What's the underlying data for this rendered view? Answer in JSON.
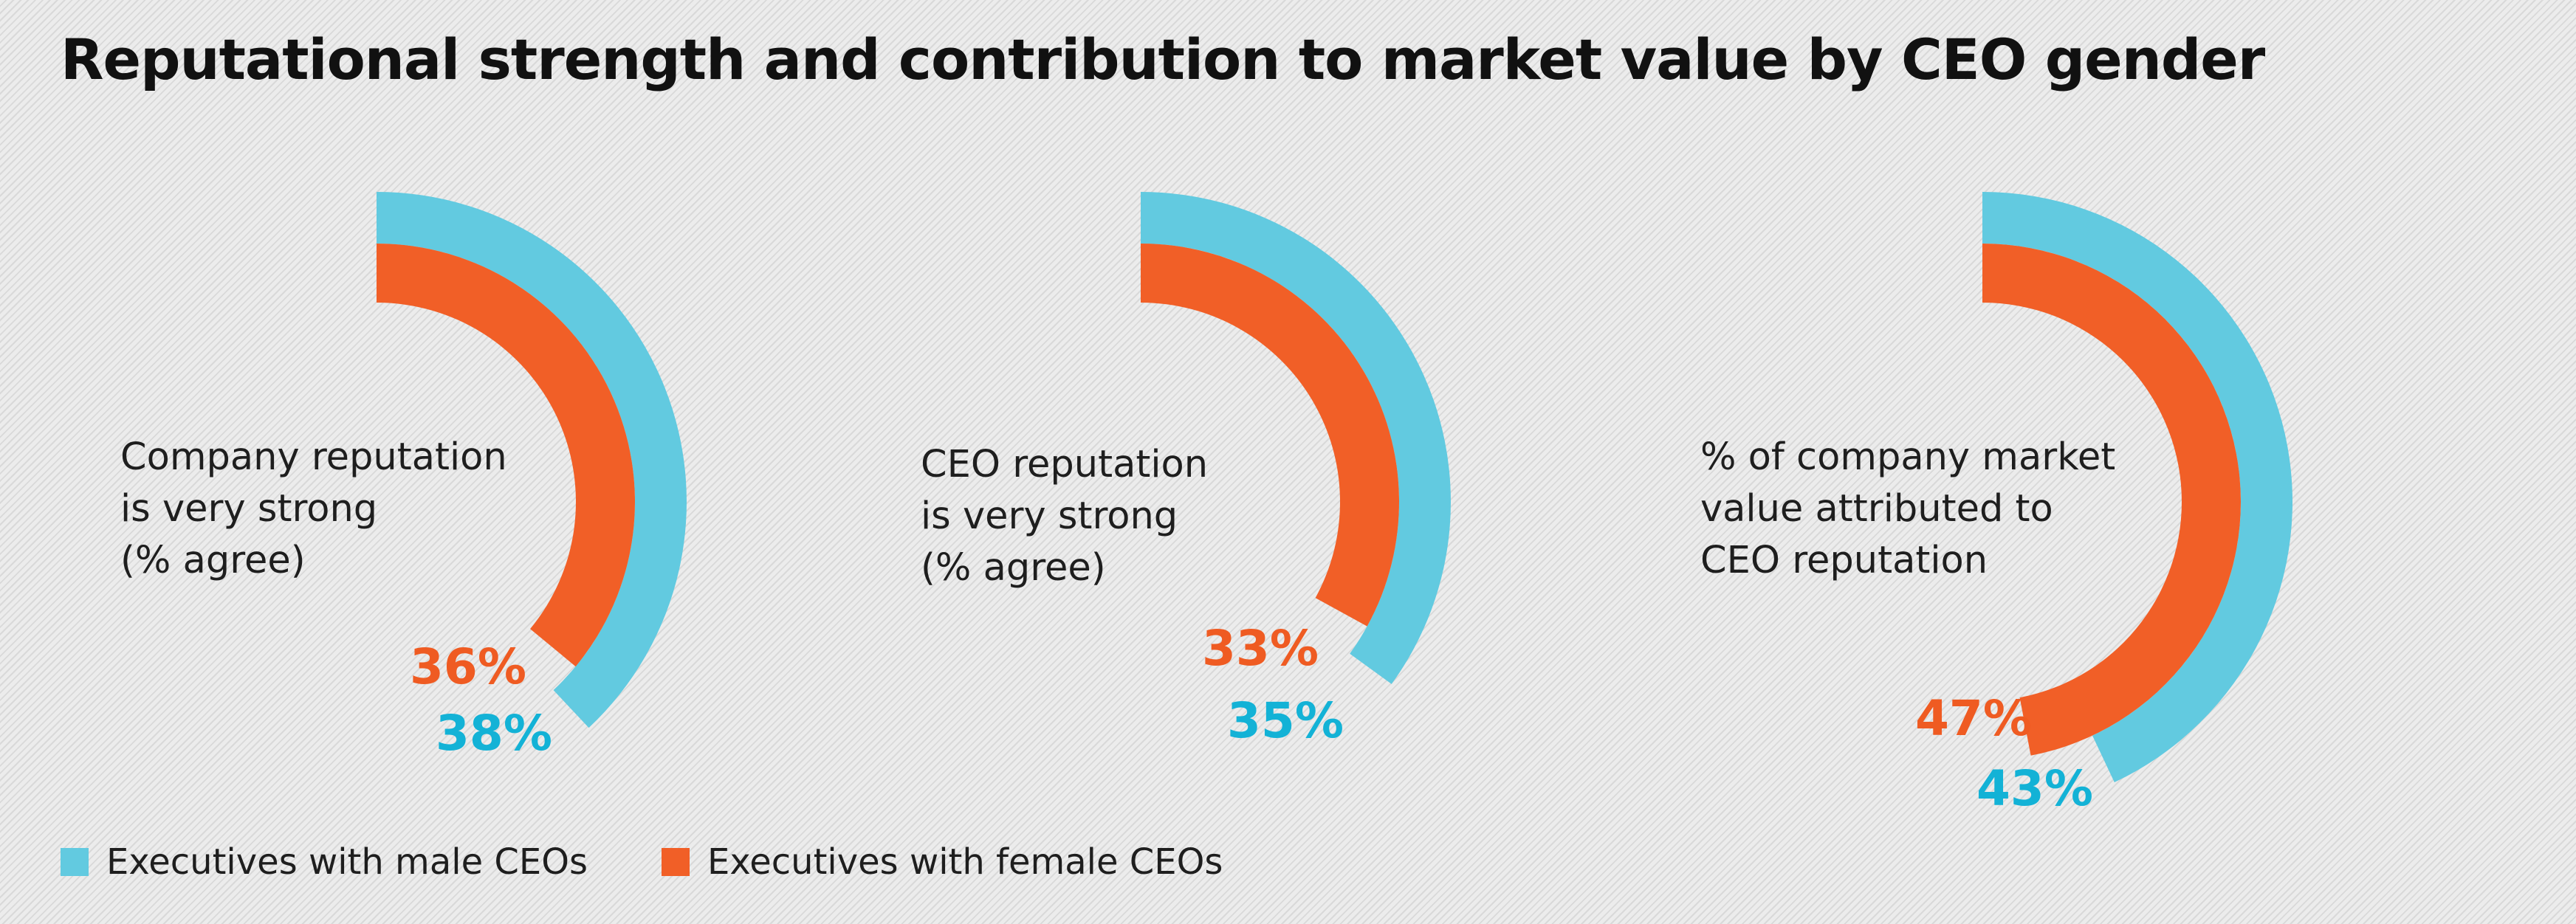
{
  "colors": {
    "male": "#62cae0",
    "female": "#f15f27",
    "male_text": "#13b2d6",
    "female_text": "#ef5b22"
  },
  "chart_data": {
    "type": "radial-bar",
    "title": "Reputational strength and contribution to market value by CEO gender",
    "series_names": [
      "Executives with male CEOs",
      "Executives with female CEOs"
    ],
    "charts": [
      {
        "label_lines": [
          "Company reputation",
          "is very strong",
          "(% agree)"
        ],
        "male": 38,
        "female": 36,
        "male_label": "38%",
        "female_label": "36%"
      },
      {
        "label_lines": [
          "CEO reputation",
          "is very strong",
          "(% agree)"
        ],
        "male": 35,
        "female": 33,
        "male_label": "35%",
        "female_label": "33%"
      },
      {
        "label_lines": [
          "% of company market",
          "value attributed to",
          "CEO reputation"
        ],
        "male": 43,
        "female": 47,
        "male_label": "43%",
        "female_label": "47%"
      }
    ]
  },
  "legend": {
    "male_label": "Executives with male CEOs",
    "female_label": "Executives with female CEOs"
  }
}
